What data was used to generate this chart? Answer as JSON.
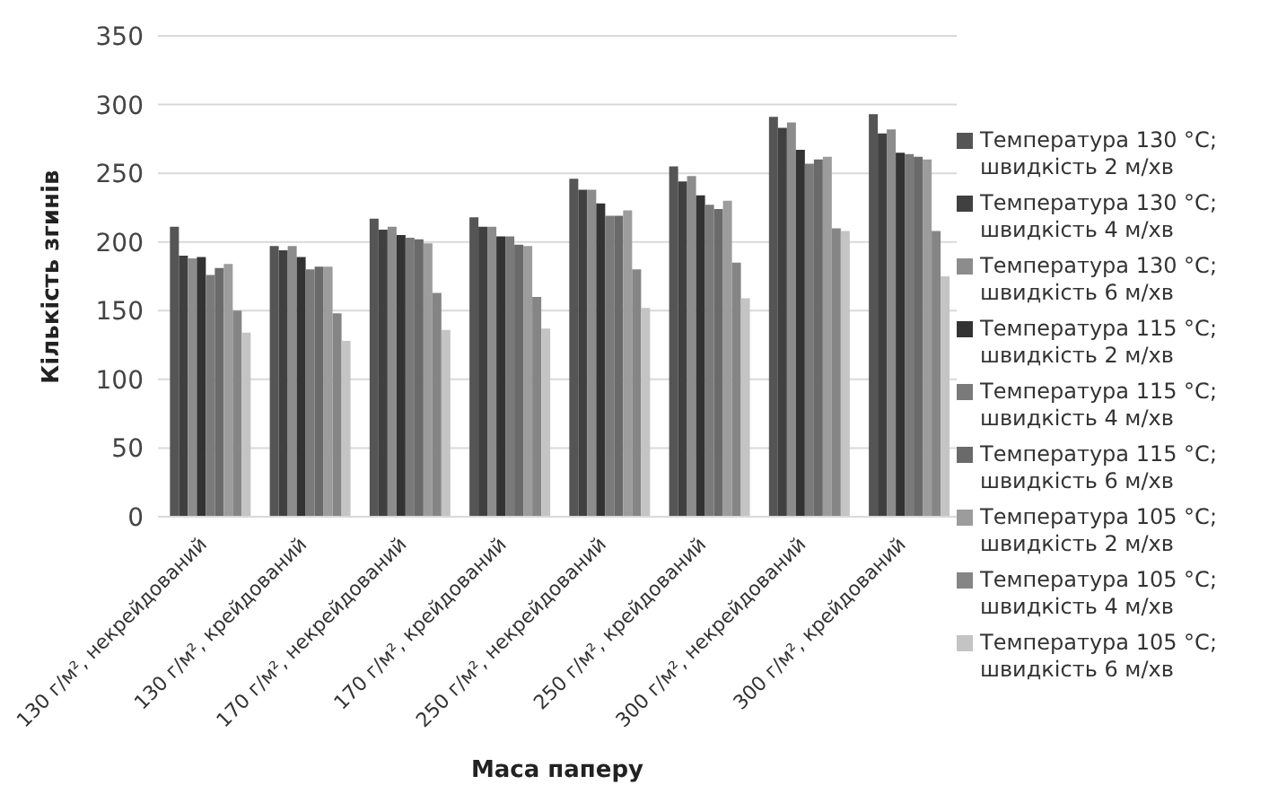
{
  "chart_data": {
    "type": "bar",
    "xlabel": "Маса паперу",
    "ylabel": "Кількість згинів",
    "categories": [
      "130 г/м², некрейдований",
      "130 г/м², крейдований",
      "170 г/м², некрейдований",
      "170 г/м², крейдований",
      "250 г/м², некрейдований",
      "250 г/м², крейдований",
      "300 г/м², некрейдований",
      "300 г/м², крейдований"
    ],
    "series": [
      {
        "name": "Температура 130 °C; швидкість 2 м/хв",
        "color": "#555555",
        "values": [
          211,
          197,
          217,
          218,
          246,
          255,
          291,
          293
        ]
      },
      {
        "name": "Температура 130 °C; швидкість 4 м/хв",
        "color": "#404040",
        "values": [
          190,
          194,
          209,
          211,
          238,
          244,
          283,
          279
        ]
      },
      {
        "name": "Температура 130 °C; швидкість 6 м/хв",
        "color": "#8c8c8c",
        "values": [
          188,
          197,
          211,
          211,
          238,
          248,
          287,
          282
        ]
      },
      {
        "name": "Температура 115 °C; швидкість 2 м/хв",
        "color": "#333333",
        "values": [
          189,
          189,
          205,
          204,
          228,
          234,
          267,
          265
        ]
      },
      {
        "name": "Температура 115 °C; швидкість 4 м/хв",
        "color": "#7a7a7a",
        "values": [
          176,
          180,
          203,
          204,
          219,
          227,
          257,
          264
        ]
      },
      {
        "name": "Температура 115 °C; швидкість 6 м/хв",
        "color": "#6a6a6a",
        "values": [
          181,
          182,
          202,
          198,
          219,
          224,
          260,
          262
        ]
      },
      {
        "name": "Температура 105 °C; швидкість 2 м/хв",
        "color": "#9c9c9c",
        "values": [
          184,
          182,
          199,
          197,
          223,
          230,
          262,
          260
        ]
      },
      {
        "name": "Температура 105 °C; швидкість 4 м/хв",
        "color": "#858585",
        "values": [
          150,
          148,
          163,
          160,
          180,
          185,
          210,
          208
        ]
      },
      {
        "name": "Температура 105 °C; швидкість 6 м/хв",
        "color": "#c4c4c4",
        "values": [
          134,
          128,
          136,
          137,
          152,
          159,
          208,
          175
        ]
      }
    ],
    "ylim": [
      0,
      350
    ],
    "yticks": [
      0,
      50,
      100,
      150,
      200,
      250,
      300,
      350
    ],
    "grid": "y",
    "legend": "right"
  }
}
